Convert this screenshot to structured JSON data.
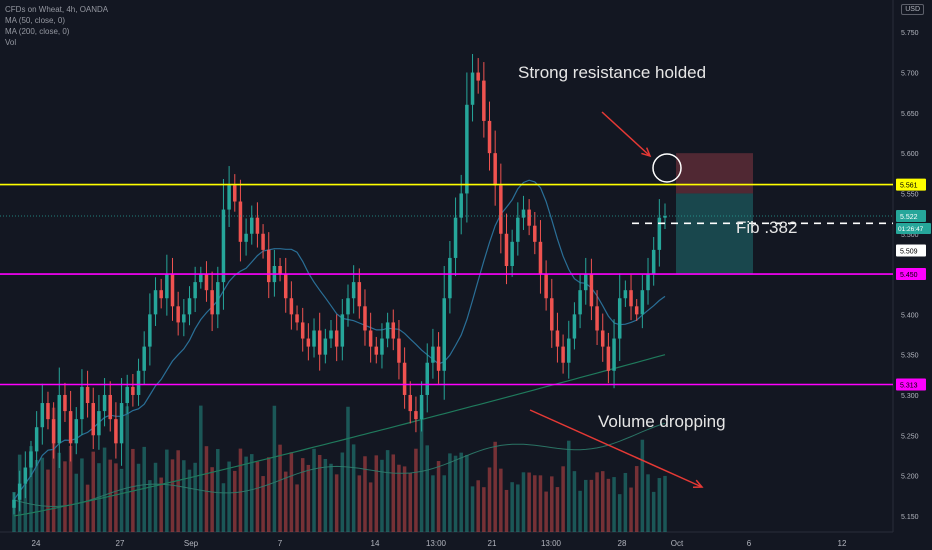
{
  "legend": {
    "symbol": "CFDs on Wheat, 4h, OANDA",
    "ma50": "MA (50, close, 0)",
    "ma200": "MA (200, close, 0)",
    "volume": "Vol"
  },
  "currency": "USD",
  "annotations": {
    "resistance": "Strong resistance holded",
    "fib": "Fib .382",
    "volume": "Volume dropping"
  },
  "colors": {
    "background": "#131722",
    "up": "#26a69a",
    "down": "#ef5350",
    "resistance_line": "#ffff00",
    "support_line": "#ff00ff",
    "ma50": "#2a6f97",
    "ma200": "#1f7a5c",
    "arrow": "#e53935",
    "position_stop": "#5c2b36",
    "position_target": "#1b4d52"
  },
  "chart_data": {
    "type": "candlestick",
    "y_axis": {
      "range": [
        5.13,
        5.79
      ],
      "tick_labels": [
        "5.150",
        "5.200",
        "5.250",
        "5.300",
        "5.350",
        "5.400",
        "5.450",
        "5.500",
        "5.550",
        "5.600",
        "5.650",
        "5.700",
        "5.750"
      ]
    },
    "x_axis": {
      "tick_labels": [
        "24",
        "27",
        "Sep",
        "7",
        "14",
        "13:00",
        "21",
        "13:00",
        "28",
        "Oct",
        "6",
        "12"
      ]
    },
    "levels": [
      {
        "name": "resistance",
        "value": 5.561,
        "label": "5.561"
      },
      {
        "name": "support-upper",
        "value": 5.45,
        "label": "5.450"
      },
      {
        "name": "support-lower",
        "value": 5.313,
        "label": "5.313"
      }
    ],
    "price_labels": [
      {
        "value": 5.522,
        "label": "5.522",
        "color": "#26a69a"
      },
      {
        "value": 5.509,
        "label": "5.509",
        "color": "#ffffff"
      }
    ],
    "countdown": "01:26:47",
    "fib_level": 5.513,
    "position": {
      "entry": 5.55,
      "stop": 5.6,
      "target": 5.45
    },
    "closes": [
      5.17,
      5.19,
      5.21,
      5.23,
      5.26,
      5.29,
      5.27,
      5.24,
      5.3,
      5.28,
      5.24,
      5.27,
      5.31,
      5.29,
      5.25,
      5.28,
      5.3,
      5.27,
      5.24,
      5.29,
      5.31,
      5.3,
      5.33,
      5.36,
      5.4,
      5.43,
      5.42,
      5.45,
      5.41,
      5.39,
      5.4,
      5.42,
      5.44,
      5.45,
      5.43,
      5.4,
      5.44,
      5.53,
      5.56,
      5.54,
      5.49,
      5.5,
      5.52,
      5.5,
      5.48,
      5.44,
      5.46,
      5.45,
      5.42,
      5.4,
      5.39,
      5.37,
      5.36,
      5.38,
      5.35,
      5.37,
      5.38,
      5.36,
      5.4,
      5.42,
      5.44,
      5.41,
      5.38,
      5.36,
      5.35,
      5.37,
      5.39,
      5.37,
      5.34,
      5.3,
      5.28,
      5.27,
      5.3,
      5.34,
      5.36,
      5.33,
      5.42,
      5.47,
      5.52,
      5.55,
      5.66,
      5.7,
      5.69,
      5.64,
      5.6,
      5.56,
      5.5,
      5.46,
      5.49,
      5.52,
      5.53,
      5.51,
      5.49,
      5.45,
      5.42,
      5.38,
      5.36,
      5.34,
      5.37,
      5.4,
      5.43,
      5.45,
      5.41,
      5.38,
      5.36,
      5.33,
      5.37,
      5.42,
      5.43,
      5.41,
      5.4,
      5.43,
      5.45,
      5.48,
      5.52,
      5.522
    ],
    "volume_trend": "dropping"
  }
}
